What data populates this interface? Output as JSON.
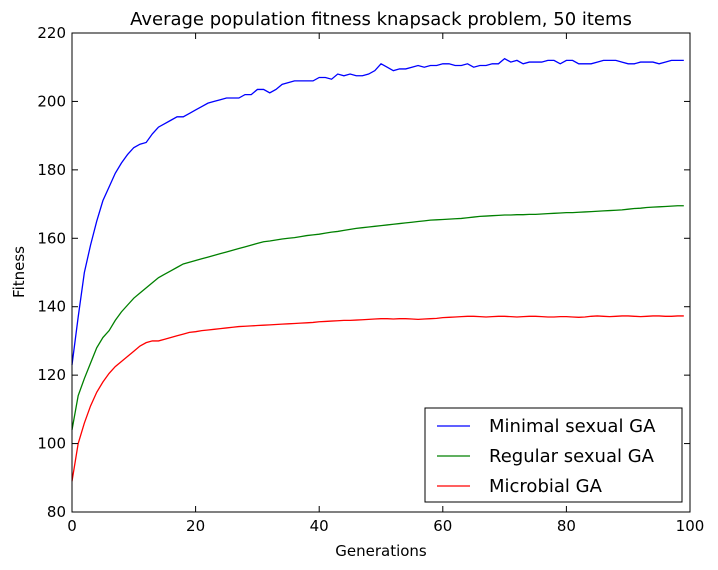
{
  "chart_data": {
    "type": "line",
    "title": "Average population fitness knapsack problem, 50 items",
    "xlabel": "Generations",
    "ylabel": "Fitness",
    "xlim": [
      0,
      100
    ],
    "ylim": [
      80,
      220
    ],
    "xticks": [
      "0",
      "20",
      "40",
      "60",
      "80",
      "100"
    ],
    "yticks": [
      "80",
      "100",
      "120",
      "140",
      "160",
      "180",
      "200",
      "220"
    ],
    "grid": false,
    "legend_position": "lower-right",
    "series": [
      {
        "name": "Minimal sexual GA",
        "color": "#0000ff",
        "x": [
          0,
          1,
          2,
          3,
          4,
          5,
          6,
          7,
          8,
          9,
          10,
          11,
          12,
          13,
          14,
          15,
          16,
          17,
          18,
          19,
          20,
          21,
          22,
          23,
          24,
          25,
          26,
          27,
          28,
          29,
          30,
          31,
          32,
          33,
          34,
          35,
          36,
          37,
          38,
          39,
          40,
          41,
          42,
          43,
          44,
          45,
          46,
          47,
          48,
          49,
          50,
          51,
          52,
          53,
          54,
          55,
          56,
          57,
          58,
          59,
          60,
          61,
          62,
          63,
          64,
          65,
          66,
          67,
          68,
          69,
          70,
          71,
          72,
          73,
          74,
          75,
          76,
          77,
          78,
          79,
          80,
          81,
          82,
          83,
          84,
          85,
          86,
          87,
          88,
          89,
          90,
          91,
          92,
          93,
          94,
          95,
          96,
          97,
          98,
          99
        ],
        "y": [
          123,
          137,
          150,
          158,
          165,
          171,
          175,
          179,
          182,
          184.5,
          186.5,
          187.5,
          188,
          190.5,
          192.5,
          193.5,
          194.5,
          195.5,
          195.5,
          196.5,
          197.5,
          198.5,
          199.5,
          200,
          200.5,
          201,
          201,
          201,
          202,
          202,
          203.5,
          203.5,
          202.5,
          203.5,
          205,
          205.5,
          206,
          206,
          206,
          206,
          207,
          207,
          206.5,
          208,
          207.5,
          208,
          207.5,
          207.5,
          208,
          209,
          211,
          210,
          209,
          209.5,
          209.5,
          210,
          210.5,
          210,
          210.5,
          210.5,
          211,
          211,
          210.5,
          210.5,
          211,
          210,
          210.5,
          210.5,
          211,
          211,
          212.5,
          211.5,
          212,
          211,
          211.5,
          211.5,
          211.5,
          212,
          212,
          211,
          212,
          212,
          211,
          211,
          211,
          211.5,
          212,
          212,
          212,
          211.5,
          211,
          211,
          211.5,
          211.5,
          211.5,
          211,
          211.5,
          212,
          212,
          212
        ]
      },
      {
        "name": "Regular sexual GA",
        "color": "#008000",
        "x": [
          0,
          1,
          2,
          3,
          4,
          5,
          6,
          7,
          8,
          9,
          10,
          11,
          12,
          13,
          14,
          15,
          16,
          17,
          18,
          19,
          20,
          21,
          22,
          23,
          24,
          25,
          26,
          27,
          28,
          29,
          30,
          31,
          32,
          33,
          34,
          35,
          36,
          37,
          38,
          39,
          40,
          41,
          42,
          43,
          44,
          45,
          46,
          47,
          48,
          49,
          50,
          51,
          52,
          53,
          54,
          55,
          56,
          57,
          58,
          59,
          60,
          61,
          62,
          63,
          64,
          65,
          66,
          67,
          68,
          69,
          70,
          71,
          72,
          73,
          74,
          75,
          76,
          77,
          78,
          79,
          80,
          81,
          82,
          83,
          84,
          85,
          86,
          87,
          88,
          89,
          90,
          91,
          92,
          93,
          94,
          95,
          96,
          97,
          98,
          99
        ],
        "y": [
          104,
          114,
          119,
          123.5,
          128,
          131,
          133,
          136,
          138.5,
          140.5,
          142.5,
          144,
          145.5,
          147,
          148.5,
          149.5,
          150.5,
          151.5,
          152.5,
          153,
          153.5,
          154,
          154.5,
          155,
          155.5,
          156,
          156.5,
          157,
          157.5,
          158,
          158.5,
          159,
          159.2,
          159.5,
          159.8,
          160,
          160.2,
          160.5,
          160.8,
          161,
          161.2,
          161.5,
          161.8,
          162,
          162.3,
          162.6,
          162.9,
          163.1,
          163.3,
          163.5,
          163.7,
          163.9,
          164.1,
          164.3,
          164.5,
          164.7,
          164.9,
          165.1,
          165.3,
          165.4,
          165.5,
          165.6,
          165.7,
          165.8,
          166,
          166.2,
          166.4,
          166.5,
          166.6,
          166.7,
          166.8,
          166.8,
          166.9,
          166.9,
          167,
          167,
          167.1,
          167.2,
          167.3,
          167.4,
          167.5,
          167.5,
          167.6,
          167.7,
          167.8,
          167.9,
          168,
          168.1,
          168.2,
          168.3,
          168.5,
          168.7,
          168.8,
          169,
          169.1,
          169.2,
          169.3,
          169.4,
          169.5,
          169.5
        ]
      },
      {
        "name": "Microbial GA",
        "color": "#ff0000",
        "x": [
          0,
          1,
          2,
          3,
          4,
          5,
          6,
          7,
          8,
          9,
          10,
          11,
          12,
          13,
          14,
          15,
          16,
          17,
          18,
          19,
          20,
          21,
          22,
          23,
          24,
          25,
          26,
          27,
          28,
          29,
          30,
          31,
          32,
          33,
          34,
          35,
          36,
          37,
          38,
          39,
          40,
          41,
          42,
          43,
          44,
          45,
          46,
          47,
          48,
          49,
          50,
          51,
          52,
          53,
          54,
          55,
          56,
          57,
          58,
          59,
          60,
          61,
          62,
          63,
          64,
          65,
          66,
          67,
          68,
          69,
          70,
          71,
          72,
          73,
          74,
          75,
          76,
          77,
          78,
          79,
          80,
          81,
          82,
          83,
          84,
          85,
          86,
          87,
          88,
          89,
          90,
          91,
          92,
          93,
          94,
          95,
          96,
          97,
          98,
          99
        ],
        "y": [
          89,
          100,
          106,
          111,
          115,
          118,
          120.5,
          122.5,
          124,
          125.5,
          127,
          128.5,
          129.5,
          130,
          130,
          130.5,
          131,
          131.5,
          132,
          132.5,
          132.7,
          133,
          133.2,
          133.4,
          133.6,
          133.8,
          134,
          134.2,
          134.3,
          134.4,
          134.5,
          134.6,
          134.7,
          134.8,
          134.9,
          135,
          135.1,
          135.2,
          135.3,
          135.4,
          135.6,
          135.7,
          135.8,
          135.9,
          136,
          136,
          136.1,
          136.2,
          136.3,
          136.4,
          136.5,
          136.5,
          136.4,
          136.5,
          136.5,
          136.4,
          136.3,
          136.4,
          136.5,
          136.6,
          136.8,
          136.9,
          137,
          137.1,
          137.2,
          137.2,
          137.1,
          137,
          137.1,
          137.2,
          137.2,
          137.1,
          137,
          137.1,
          137.2,
          137.2,
          137.1,
          137,
          137,
          137.1,
          137.1,
          137,
          136.9,
          137,
          137.2,
          137.3,
          137.2,
          137.1,
          137.2,
          137.3,
          137.3,
          137.2,
          137.1,
          137.2,
          137.3,
          137.3,
          137.2,
          137.2,
          137.3,
          137.3
        ]
      }
    ]
  }
}
